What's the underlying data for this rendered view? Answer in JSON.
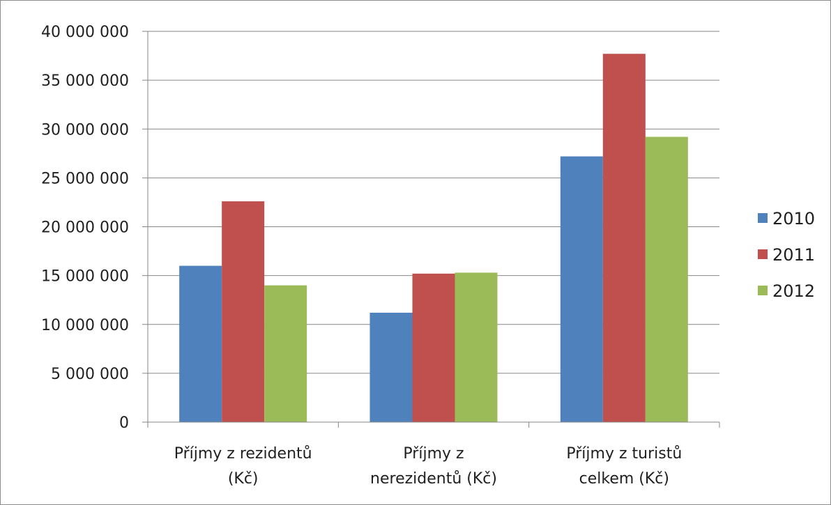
{
  "chart_data": {
    "type": "bar",
    "categories": [
      [
        "Příjmy z rezidentů",
        "(Kč)"
      ],
      [
        "Příjmy z",
        "nerezidentů (Kč)"
      ],
      [
        "Příjmy z turistů",
        "celkem (Kč)"
      ]
    ],
    "series": [
      {
        "name": "2010",
        "color": "#4f81bd",
        "values": [
          16000000,
          11200000,
          27200000
        ]
      },
      {
        "name": "2011",
        "color": "#c0504d",
        "values": [
          22600000,
          15200000,
          37700000
        ]
      },
      {
        "name": "2012",
        "color": "#9bbb59",
        "values": [
          14000000,
          15300000,
          29200000
        ]
      }
    ],
    "ylim": [
      0,
      40000000
    ],
    "yticks": [
      0,
      5000000,
      10000000,
      15000000,
      20000000,
      25000000,
      30000000,
      35000000,
      40000000
    ],
    "ytick_labels": [
      "0",
      "5 000 000",
      "10 000 000",
      "15 000 000",
      "20 000 000",
      "25 000 000",
      "30 000 000",
      "35 000 000",
      "40 000 000"
    ],
    "grid": true,
    "legend_position": "right",
    "title": "",
    "xlabel": "",
    "ylabel": ""
  }
}
